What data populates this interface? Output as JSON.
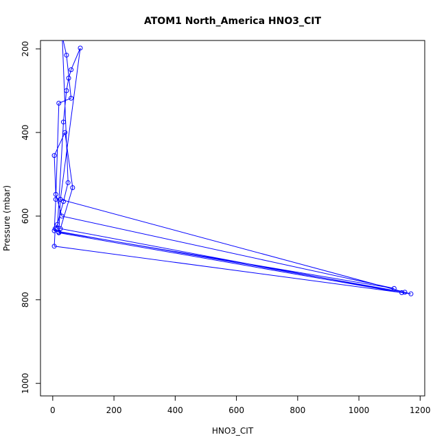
{
  "chart_data": {
    "type": "line",
    "title": "ATOM1 North_America HNO3_CIT",
    "xlabel": "HNO3_CIT",
    "ylabel": "Pressure (mbar)",
    "xlim": [
      -40,
      1215
    ],
    "ylim": [
      1030,
      180
    ],
    "y_reversed": true,
    "x_ticks": [
      0,
      200,
      400,
      600,
      800,
      1000,
      1200
    ],
    "y_ticks": [
      200,
      400,
      600,
      800,
      1000
    ],
    "grid": false,
    "color": "#0000ff",
    "series": [
      {
        "x": [
          15,
          35,
          45,
          52,
          60,
          90,
          25,
          20,
          1140,
          25,
          65,
          40,
          5,
          10,
          30,
          1115,
          20,
          25,
          1170,
          5,
          8,
          15,
          35,
          50,
          30,
          25,
          45,
          60,
          20,
          10,
          5,
          1150
        ],
        "y": [
          630,
          375,
          300,
          270,
          250,
          198,
          560,
          640,
          783,
          630,
          532,
          400,
          455,
          548,
          600,
          773,
          638,
          560,
          786,
          672,
          630,
          620,
          565,
          520,
          150,
          150,
          215,
          318,
          330,
          560,
          635,
          782
        ]
      }
    ]
  }
}
